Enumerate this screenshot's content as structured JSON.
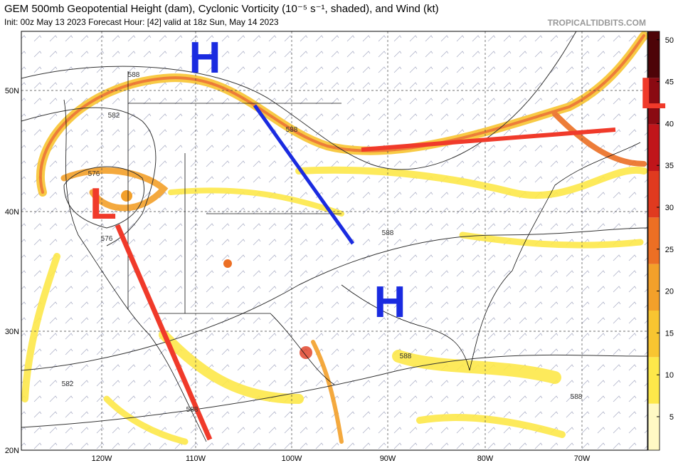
{
  "header": {
    "title": "GEM 500mb Geopotential Height (dam), Cyclonic Vorticity (10⁻⁵ s⁻¹, shaded), and Wind (kt)",
    "subtitle": "Init: 00z May 13 2023   Forecast Hour: [42]   valid at 18z Sun, May 14 2023",
    "site": "TROPICALTIDBITS.COM"
  },
  "map": {
    "lat_labels": [
      "50N",
      "40N",
      "30N",
      "20N"
    ],
    "lon_labels": [
      "120W",
      "110W",
      "100W",
      "90W",
      "80W",
      "70W"
    ],
    "contour_labels": [
      "588",
      "582",
      "576",
      "576",
      "588",
      "588",
      "588",
      "582",
      "588",
      "588"
    ],
    "annotations": [
      {
        "text": "H",
        "color": "#1a2be0"
      },
      {
        "text": "H",
        "color": "#1a2be0"
      },
      {
        "text": "L",
        "color": "#f03a2a"
      },
      {
        "text": "L",
        "color": "#f03a2a"
      }
    ]
  },
  "colorbar": {
    "lim": [
      1,
      51
    ],
    "ticks": [
      5,
      10,
      15,
      20,
      25,
      30,
      35,
      40,
      45,
      50
    ],
    "colors": [
      "#fff9c4",
      "#fde84a",
      "#f8c531",
      "#f3a02a",
      "#ec6f24",
      "#e03a1f",
      "#c0151a",
      "#8a0a12",
      "#4d0408"
    ]
  }
}
